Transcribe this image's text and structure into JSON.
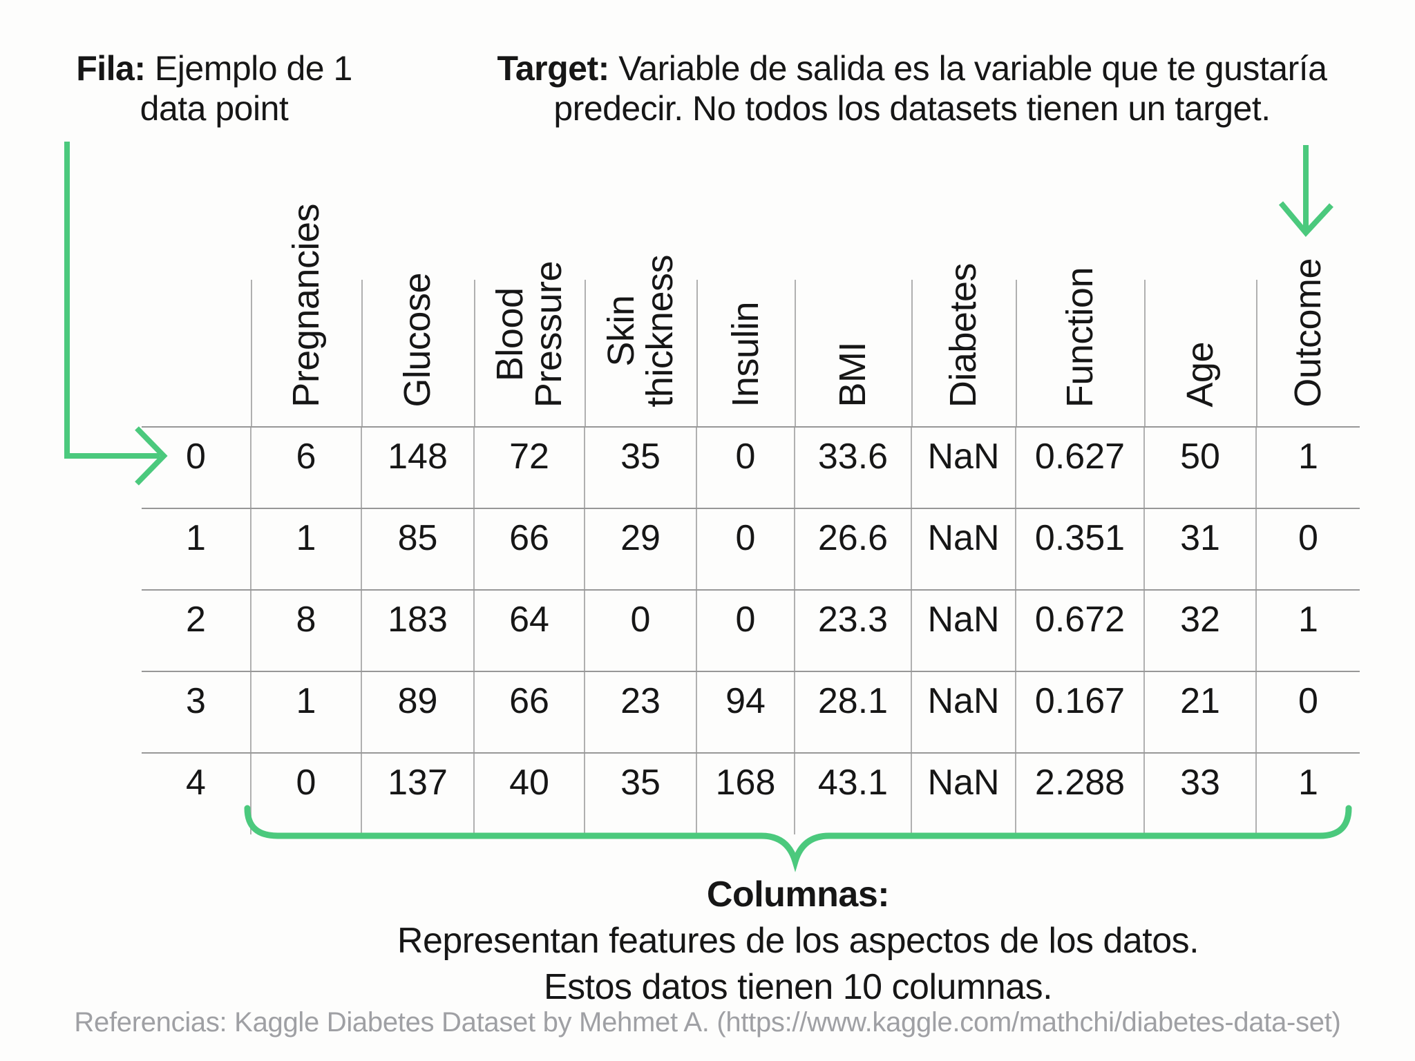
{
  "annotations": {
    "fila": {
      "label": "Fila:",
      "line1": "Ejemplo de 1",
      "line2": "data point"
    },
    "target": {
      "label": "Target:",
      "line1": "Variable de salida es la variable que te gustaría",
      "line2": "predecir. No todos los datasets tienen un target."
    },
    "columnas": {
      "title": "Columnas:",
      "line1": "Representan features de los aspectos de los datos.",
      "line2": "Estos datos tienen 10 columnas."
    },
    "referencias": "Referencias: Kaggle Diabetes Dataset by Mehmet A. (https://www.kaggle.com/mathchi/diabetes-data-set)"
  },
  "table": {
    "headers": [
      "",
      "Pregnancies",
      "Glucose",
      "Blood\nPressure",
      "Skin\nthickness",
      "Insulin",
      "BMI",
      "Diabetes",
      "Function",
      "Age",
      "Outcome"
    ],
    "rows": [
      [
        "0",
        "6",
        "148",
        "72",
        "35",
        "0",
        "33.6",
        "NaN",
        "0.627",
        "50",
        "1"
      ],
      [
        "1",
        "1",
        "85",
        "66",
        "29",
        "0",
        "26.6",
        "NaN",
        "0.351",
        "31",
        "0"
      ],
      [
        "2",
        "8",
        "183",
        "64",
        "0",
        "0",
        "23.3",
        "NaN",
        "0.672",
        "32",
        "1"
      ],
      [
        "3",
        "1",
        "89",
        "66",
        "23",
        "94",
        "28.1",
        "NaN",
        "0.167",
        "21",
        "0"
      ],
      [
        "4",
        "0",
        "137",
        "40",
        "35",
        "168",
        "43.1",
        "NaN",
        "2.288",
        "33",
        "1"
      ]
    ]
  },
  "icons": {
    "fila_arrow": "elbow-arrow-right-icon",
    "target_arrow": "arrow-down-icon",
    "columns_brace": "curly-underbrace-icon"
  },
  "colors": {
    "accent_green": "#4bc97d",
    "grid_horizontal": "#979797",
    "grid_vertical": "#b0b0b0",
    "muted_text": "#9fa0a4",
    "text": "#161616",
    "background": "#fdfdfc"
  }
}
